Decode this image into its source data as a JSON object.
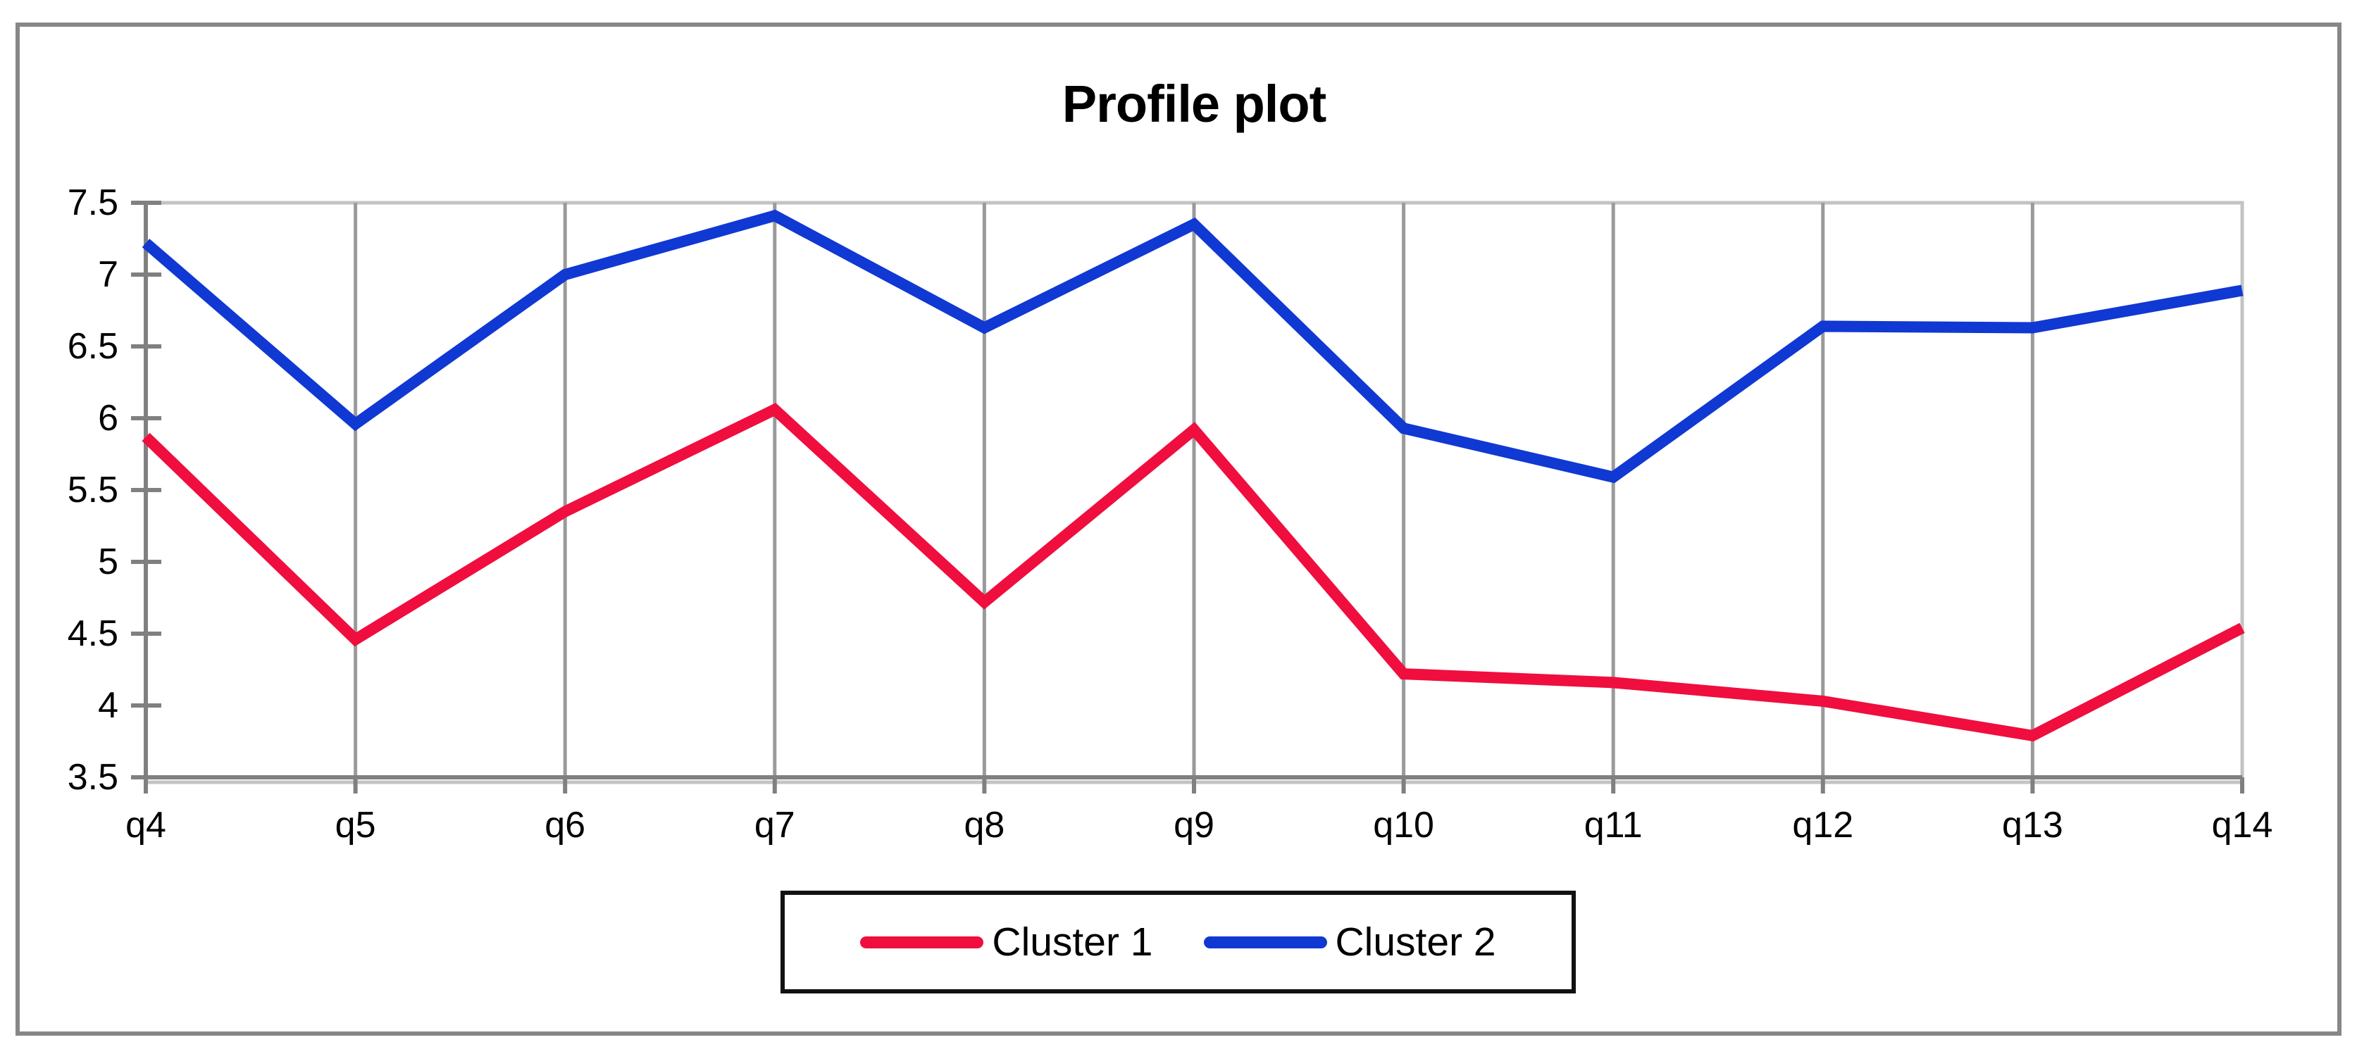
{
  "window": {
    "background_color": "#ffffff",
    "outer_border_color": "#878787"
  },
  "chart_data": {
    "type": "line",
    "title": "Profile plot",
    "categories": [
      "q4",
      "q5",
      "q6",
      "q7",
      "q8",
      "q9",
      "q10",
      "q11",
      "q12",
      "q13",
      "q14"
    ],
    "series": [
      {
        "name": "Cluster 1",
        "color": "#ef0e3e",
        "values": [
          5.87,
          4.46,
          5.35,
          6.06,
          4.72,
          5.92,
          4.22,
          4.16,
          4.03,
          3.79,
          4.54
        ]
      },
      {
        "name": "Cluster 2",
        "color": "#1038d2",
        "values": [
          7.22,
          5.96,
          7.0,
          7.41,
          6.63,
          7.35,
          5.93,
          5.59,
          6.64,
          6.63,
          6.89
        ]
      }
    ],
    "xlabel": "",
    "ylabel": "",
    "ylim": [
      3.5,
      7.5
    ],
    "ytick_step": 0.5,
    "grid": "vertical-only",
    "legend_position": "bottom-center",
    "line_width": 16,
    "axis_color": "#808080",
    "gridline_color": "#9a9a9a",
    "plot_border_color": "#c3c3c3",
    "text_color": "#000000"
  },
  "legend": {
    "items": [
      {
        "label": "Cluster 1",
        "color": "#ef0e3e"
      },
      {
        "label": "Cluster 2",
        "color": "#1038d2"
      }
    ]
  }
}
